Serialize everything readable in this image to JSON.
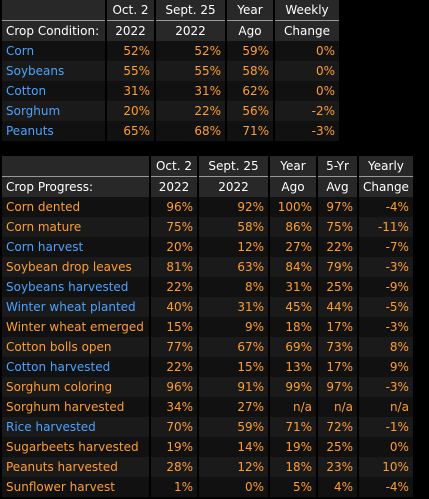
{
  "condition": {
    "headers1": [
      "",
      "Oct. 2",
      "Sept. 25",
      "Year",
      "Weekly"
    ],
    "headers2": [
      "Crop Condition:",
      "2022",
      "2022",
      "Ago",
      "Change"
    ],
    "rows": [
      {
        "name": "Corn",
        "color": "blue",
        "values": [
          "52%",
          "52%",
          "59%",
          "0%"
        ]
      },
      {
        "name": "Soybeans",
        "color": "blue",
        "values": [
          "55%",
          "55%",
          "58%",
          "0%"
        ]
      },
      {
        "name": "Cotton",
        "color": "blue",
        "values": [
          "31%",
          "31%",
          "62%",
          "0%"
        ]
      },
      {
        "name": "Sorghum",
        "color": "blue",
        "values": [
          "20%",
          "22%",
          "56%",
          "-2%"
        ]
      },
      {
        "name": "Peanuts",
        "color": "blue",
        "values": [
          "65%",
          "68%",
          "71%",
          "-3%"
        ]
      }
    ]
  },
  "progress": {
    "headers1": [
      "",
      "Oct. 2",
      "Sept. 25",
      "Year",
      "5-Yr",
      "Yearly"
    ],
    "headers2": [
      "Crop Progress:",
      "2022",
      "2022",
      "Ago",
      "Avg",
      "Change"
    ],
    "rows": [
      {
        "name": "Corn dented",
        "color": "orange",
        "values": [
          "96%",
          "92%",
          "100%",
          "97%",
          "-4%"
        ]
      },
      {
        "name": "Corn mature",
        "color": "orange",
        "values": [
          "75%",
          "58%",
          "86%",
          "75%",
          "-11%"
        ]
      },
      {
        "name": "Corn harvest",
        "color": "blue",
        "values": [
          "20%",
          "12%",
          "27%",
          "22%",
          "-7%"
        ]
      },
      {
        "name": "Soybean drop leaves",
        "color": "orange",
        "values": [
          "81%",
          "63%",
          "84%",
          "79%",
          "-3%"
        ]
      },
      {
        "name": "Soybeans harvested",
        "color": "blue",
        "values": [
          "22%",
          "8%",
          "31%",
          "25%",
          "-9%"
        ]
      },
      {
        "name": "Winter wheat planted",
        "color": "blue",
        "values": [
          "40%",
          "31%",
          "45%",
          "44%",
          "-5%"
        ]
      },
      {
        "name": "Winter wheat emerged",
        "color": "orange",
        "values": [
          "15%",
          "9%",
          "18%",
          "17%",
          "-3%"
        ]
      },
      {
        "name": "Cotton bolls open",
        "color": "orange",
        "values": [
          "77%",
          "67%",
          "69%",
          "73%",
          "8%"
        ]
      },
      {
        "name": "Cotton harvested",
        "color": "blue",
        "values": [
          "22%",
          "15%",
          "13%",
          "17%",
          "9%"
        ]
      },
      {
        "name": "Sorghum coloring",
        "color": "orange",
        "values": [
          "96%",
          "91%",
          "99%",
          "97%",
          "-3%"
        ]
      },
      {
        "name": "Sorghum harvested",
        "color": "orange",
        "values": [
          "34%",
          "27%",
          "n/a",
          "n/a",
          "n/a"
        ]
      },
      {
        "name": "Rice harvested",
        "color": "blue",
        "values": [
          "70%",
          "59%",
          "71%",
          "72%",
          "-1%"
        ]
      },
      {
        "name": "Sugarbeets harvested",
        "color": "orange",
        "values": [
          "19%",
          "14%",
          "19%",
          "25%",
          "0%"
        ]
      },
      {
        "name": "Peanuts harvested",
        "color": "orange",
        "values": [
          "28%",
          "12%",
          "18%",
          "23%",
          "10%"
        ]
      },
      {
        "name": "Sunflower harvest",
        "color": "orange",
        "values": [
          "1%",
          "0%",
          "5%",
          "4%",
          "-4%"
        ]
      }
    ]
  }
}
